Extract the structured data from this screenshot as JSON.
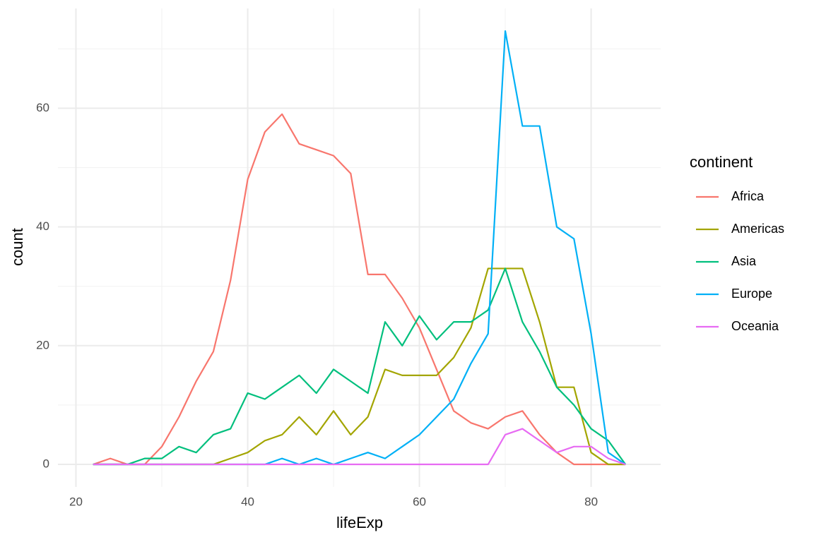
{
  "chart_data": {
    "type": "line",
    "x_label": "lifeExp",
    "y_label": "count",
    "legend_title": "continent",
    "x": [
      22,
      24,
      26,
      28,
      30,
      32,
      34,
      36,
      38,
      40,
      42,
      44,
      46,
      48,
      50,
      52,
      54,
      56,
      58,
      60,
      62,
      64,
      66,
      68,
      70,
      72,
      74,
      76,
      78,
      80,
      82,
      84
    ],
    "series": [
      {
        "name": "Africa",
        "color": "#F8766D",
        "values": [
          0,
          1,
          0,
          0,
          3,
          8,
          14,
          19,
          31,
          48,
          56,
          59,
          54,
          53,
          52,
          49,
          32,
          32,
          28,
          23,
          16,
          9,
          7,
          6,
          8,
          9,
          5,
          2,
          0,
          0,
          0,
          0
        ]
      },
      {
        "name": "Americas",
        "color": "#A3A500",
        "values": [
          0,
          0,
          0,
          0,
          0,
          0,
          0,
          0,
          1,
          2,
          4,
          5,
          8,
          5,
          9,
          5,
          8,
          16,
          15,
          15,
          15,
          18,
          23,
          33,
          33,
          33,
          24,
          13,
          13,
          2,
          0,
          0
        ]
      },
      {
        "name": "Asia",
        "color": "#00BF7D",
        "values": [
          0,
          0,
          0,
          1,
          1,
          3,
          2,
          5,
          6,
          12,
          11,
          13,
          15,
          12,
          16,
          14,
          12,
          24,
          20,
          25,
          21,
          24,
          24,
          26,
          33,
          24,
          19,
          13,
          10,
          6,
          4,
          0
        ]
      },
      {
        "name": "Europe",
        "color": "#00B0F6",
        "values": [
          0,
          0,
          0,
          0,
          0,
          0,
          0,
          0,
          0,
          0,
          0,
          1,
          0,
          1,
          0,
          1,
          2,
          1,
          3,
          5,
          8,
          11,
          17,
          22,
          73,
          57,
          57,
          40,
          38,
          22,
          2,
          0
        ]
      },
      {
        "name": "Oceania",
        "color": "#E76BF3",
        "values": [
          0,
          0,
          0,
          0,
          0,
          0,
          0,
          0,
          0,
          0,
          0,
          0,
          0,
          0,
          0,
          0,
          0,
          0,
          0,
          0,
          0,
          0,
          0,
          0,
          5,
          6,
          4,
          2,
          3,
          3,
          1,
          0
        ]
      }
    ],
    "xlim": [
      17.9,
      88.1
    ],
    "ylim": [
      -3.8,
      76.8
    ],
    "xticks": [
      20,
      40,
      60,
      80
    ],
    "yticks": [
      0,
      20,
      40,
      60
    ],
    "x_minor_ticks": [
      30,
      50,
      70
    ],
    "y_minor_ticks": [
      10,
      30,
      50,
      70
    ],
    "grid": true,
    "legend": "right"
  }
}
